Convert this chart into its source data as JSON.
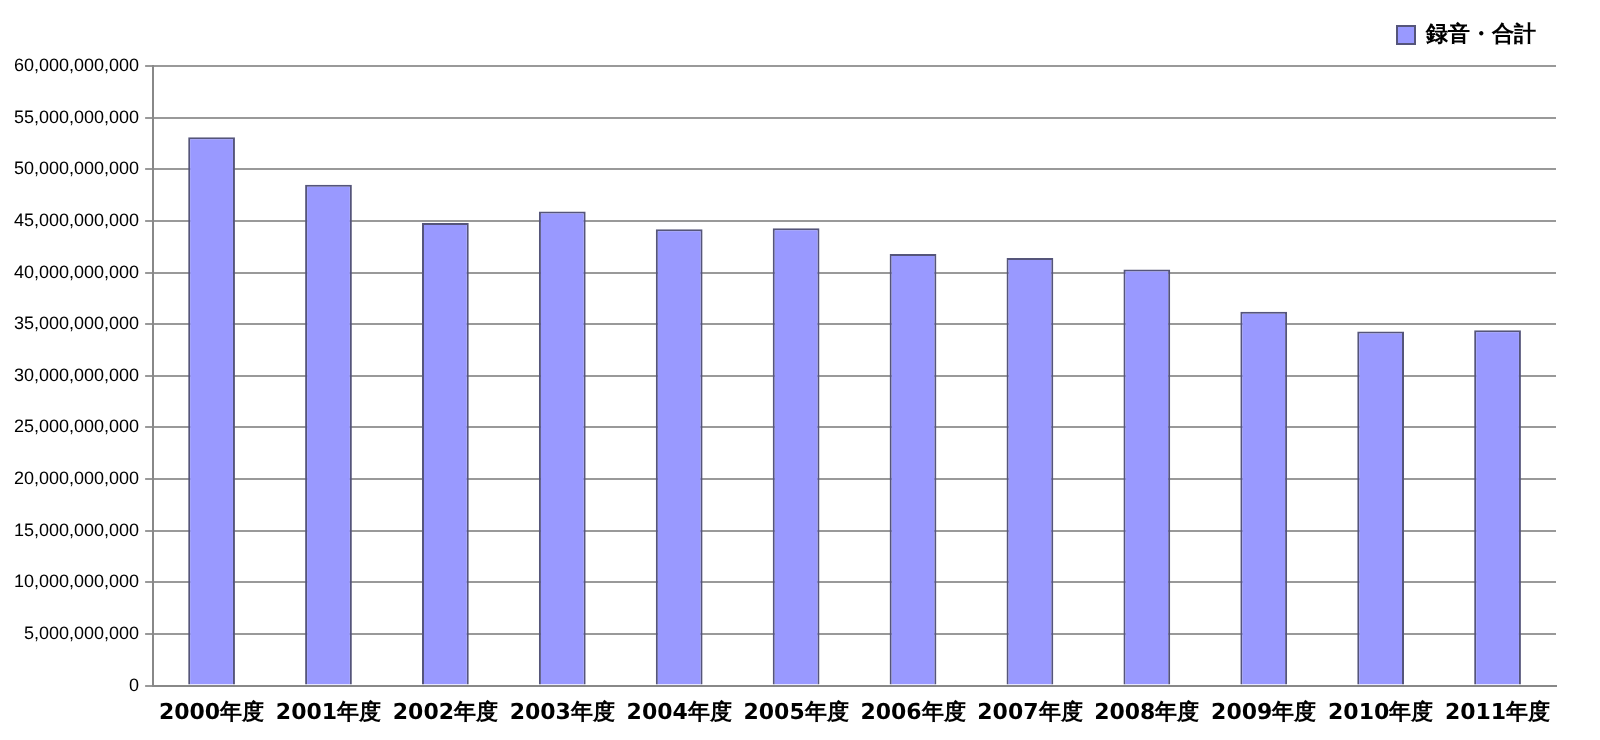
{
  "chart_data": {
    "type": "bar",
    "categories": [
      "2000年度",
      "2001年度",
      "2002年度",
      "2003年度",
      "2004年度",
      "2005年度",
      "2006年度",
      "2007年度",
      "2008年度",
      "2009年度",
      "2010年度",
      "2011年度"
    ],
    "series": [
      {
        "name": "録音・合計",
        "color": "#9999ff",
        "values": [
          53100000000,
          48500000000,
          44800000000,
          45900000000,
          44200000000,
          44300000000,
          41800000000,
          41400000000,
          40300000000,
          36200000000,
          34300000000,
          34400000000
        ]
      }
    ],
    "ylim": [
      0,
      60000000000
    ],
    "yticks": [
      0,
      {
        "value": 5000000000,
        "label": "5,000,000,000"
      },
      {
        "value": 10000000000,
        "label": "10,000,000,000"
      },
      {
        "value": 15000000000,
        "label": "15,000,000,000"
      },
      {
        "value": 20000000000,
        "label": "20,000,000,000"
      },
      {
        "value": 25000000000,
        "label": "25,000,000,000"
      },
      {
        "value": 30000000000,
        "label": "30,000,000,000"
      },
      {
        "value": 35000000000,
        "label": "35,000,000,000"
      },
      {
        "value": 40000000000,
        "label": "40,000,000,000"
      },
      {
        "value": 45000000000,
        "label": "45,000,000,000"
      },
      {
        "value": 50000000000,
        "label": "50,000,000,000"
      },
      {
        "value": 55000000000,
        "label": "55,000,000,000"
      },
      {
        "value": 60000000000,
        "label": "60,000,000,000"
      }
    ],
    "grid": "y",
    "legend": "top right"
  }
}
